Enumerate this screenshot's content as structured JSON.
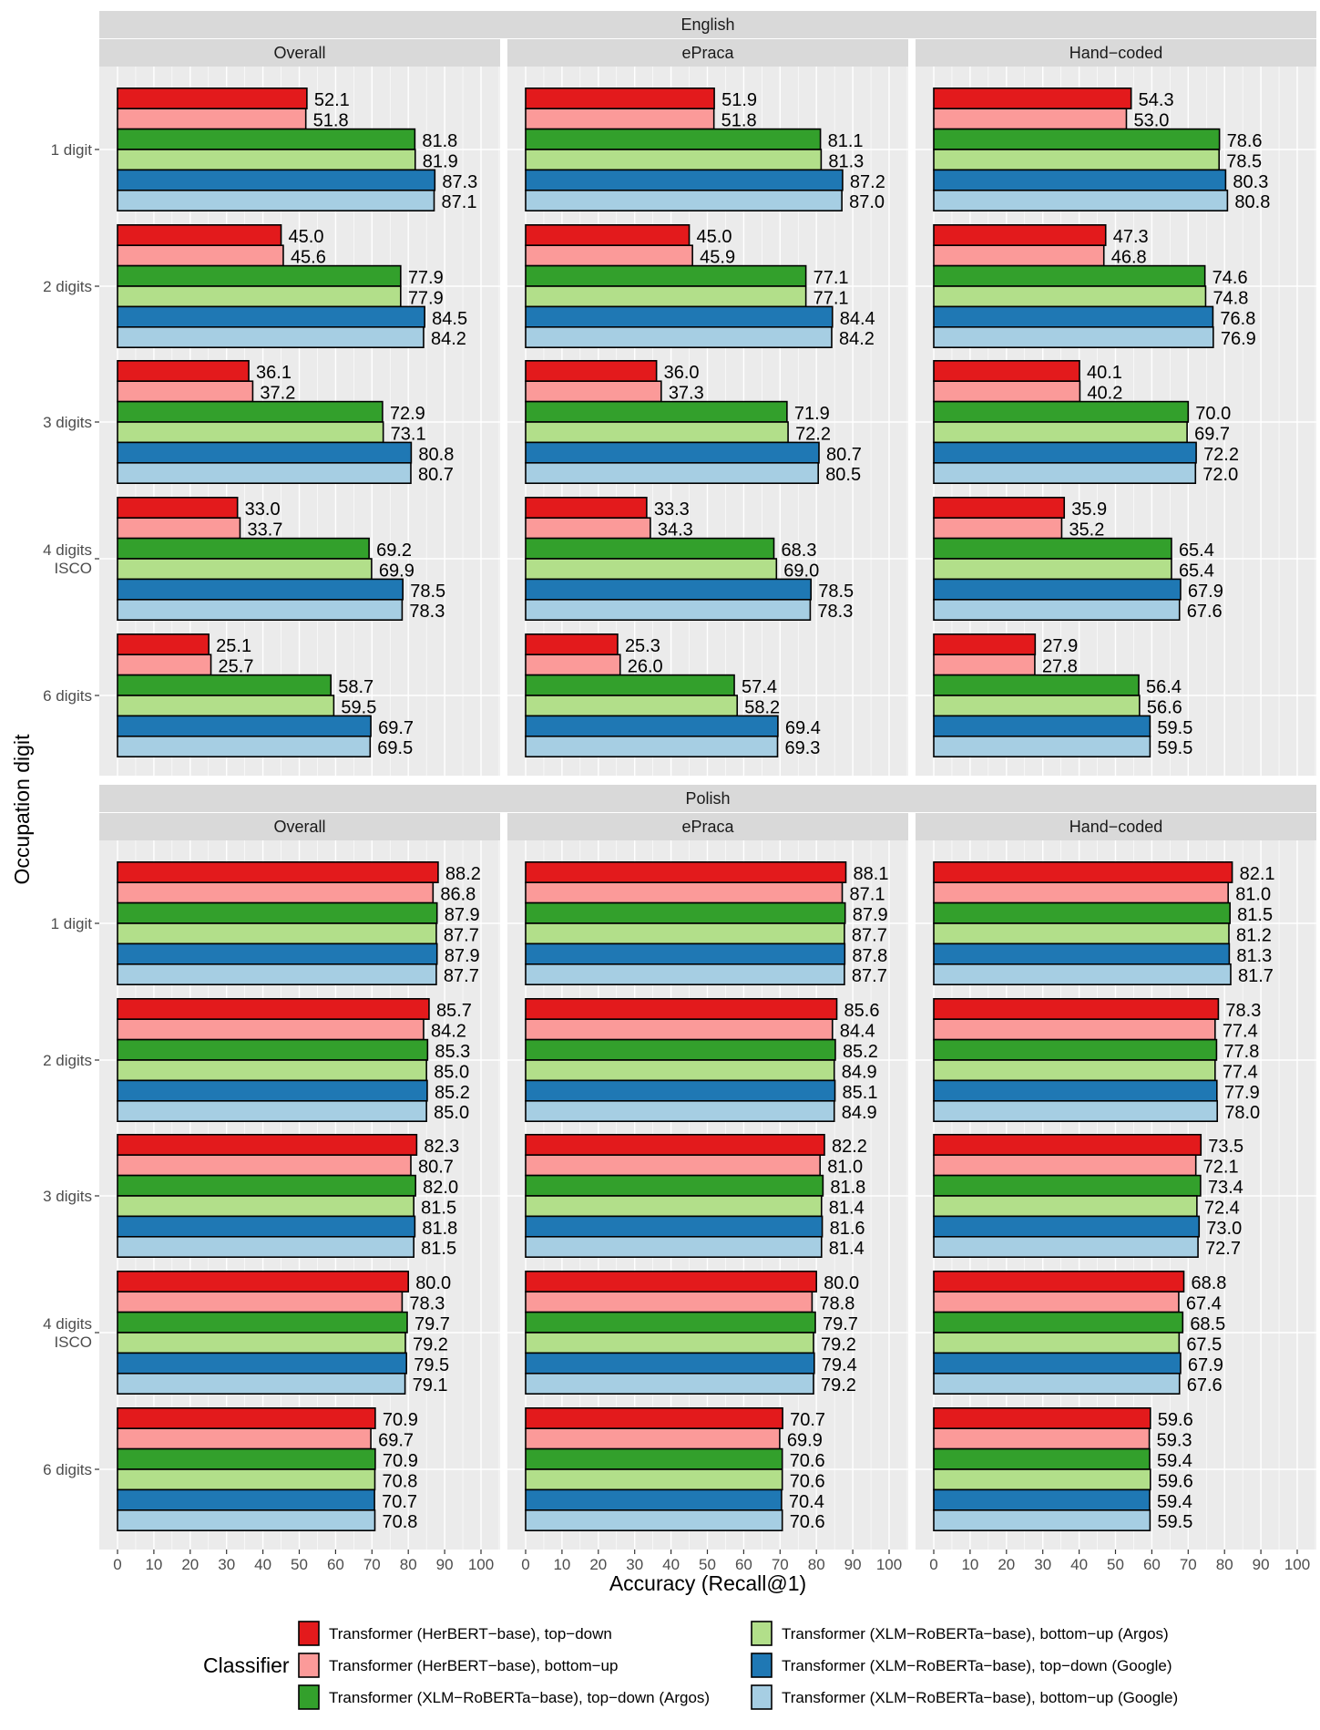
{
  "chart_data": {
    "type": "bar",
    "orientation": "horizontal",
    "xlabel": "Accuracy (Recall@1)",
    "ylabel": "Occupation digit",
    "xlim": [
      0,
      100
    ],
    "xticks": [
      "0",
      "10",
      "20",
      "30",
      "40",
      "50",
      "60",
      "70",
      "80",
      "90",
      "100"
    ],
    "categories": [
      "1 digit",
      "2 digits",
      "3 digits",
      "4 digits\nISCO",
      "6 digits"
    ],
    "grid": true,
    "legend": {
      "title": "Classifier",
      "position": "bottom",
      "entries": [
        "Transformer (HerBERT−base), top−down",
        "Transformer (HerBERT−base), bottom−up",
        "Transformer (XLM−RoBERTa−base), top−down (Argos)",
        "Transformer (XLM−RoBERTa−base), bottom−up (Argos)",
        "Transformer (XLM−RoBERTa−base), top−down (Google)",
        "Transformer (XLM−RoBERTa−base), bottom−up (Google)"
      ]
    },
    "colors": [
      "#E31A1C",
      "#FB9A99",
      "#33A02C",
      "#B2DF8A",
      "#1F78B4",
      "#A6CEE3"
    ],
    "rows": [
      {
        "label": "English",
        "panels": [
          {
            "label": "Overall",
            "values": [
              [
                52.1,
                51.8,
                81.8,
                81.9,
                87.3,
                87.1
              ],
              [
                45.0,
                45.6,
                77.9,
                77.9,
                84.5,
                84.2
              ],
              [
                36.1,
                37.2,
                72.9,
                73.1,
                80.8,
                80.7
              ],
              [
                33.0,
                33.7,
                69.2,
                69.9,
                78.5,
                78.3
              ],
              [
                25.1,
                25.7,
                58.7,
                59.5,
                69.7,
                69.5
              ]
            ]
          },
          {
            "label": "ePraca",
            "values": [
              [
                51.9,
                51.8,
                81.1,
                81.3,
                87.2,
                87.0
              ],
              [
                45.0,
                45.9,
                77.1,
                77.1,
                84.4,
                84.2
              ],
              [
                36.0,
                37.3,
                71.9,
                72.2,
                80.7,
                80.5
              ],
              [
                33.3,
                34.3,
                68.3,
                69.0,
                78.5,
                78.3
              ],
              [
                25.3,
                26.0,
                57.4,
                58.2,
                69.4,
                69.3
              ]
            ]
          },
          {
            "label": "Hand−coded",
            "values": [
              [
                54.3,
                53.0,
                78.6,
                78.5,
                80.3,
                80.8
              ],
              [
                47.3,
                46.8,
                74.6,
                74.8,
                76.8,
                76.9
              ],
              [
                40.1,
                40.2,
                70.0,
                69.7,
                72.2,
                72.0
              ],
              [
                35.9,
                35.2,
                65.4,
                65.4,
                67.9,
                67.6
              ],
              [
                27.9,
                27.8,
                56.4,
                56.6,
                59.5,
                59.5
              ]
            ]
          }
        ]
      },
      {
        "label": "Polish",
        "panels": [
          {
            "label": "Overall",
            "values": [
              [
                88.2,
                86.8,
                87.9,
                87.7,
                87.9,
                87.7
              ],
              [
                85.7,
                84.2,
                85.3,
                85.0,
                85.2,
                85.0
              ],
              [
                82.3,
                80.7,
                82.0,
                81.5,
                81.8,
                81.5
              ],
              [
                80.0,
                78.3,
                79.7,
                79.2,
                79.5,
                79.1
              ],
              [
                70.9,
                69.7,
                70.9,
                70.8,
                70.7,
                70.8
              ]
            ]
          },
          {
            "label": "ePraca",
            "values": [
              [
                88.1,
                87.1,
                87.9,
                87.7,
                87.8,
                87.7
              ],
              [
                85.6,
                84.4,
                85.2,
                84.9,
                85.1,
                84.9
              ],
              [
                82.2,
                81.0,
                81.8,
                81.4,
                81.6,
                81.4
              ],
              [
                80.0,
                78.8,
                79.7,
                79.2,
                79.4,
                79.2
              ],
              [
                70.7,
                69.9,
                70.6,
                70.6,
                70.4,
                70.6
              ]
            ]
          },
          {
            "label": "Hand−coded",
            "values": [
              [
                82.1,
                81.0,
                81.5,
                81.2,
                81.3,
                81.7
              ],
              [
                78.3,
                77.4,
                77.8,
                77.4,
                77.9,
                78.0
              ],
              [
                73.5,
                72.1,
                73.4,
                72.4,
                73.0,
                72.7
              ],
              [
                68.8,
                67.4,
                68.5,
                67.5,
                67.9,
                67.6
              ],
              [
                59.6,
                59.3,
                59.4,
                59.6,
                59.4,
                59.5
              ]
            ]
          }
        ]
      }
    ]
  }
}
